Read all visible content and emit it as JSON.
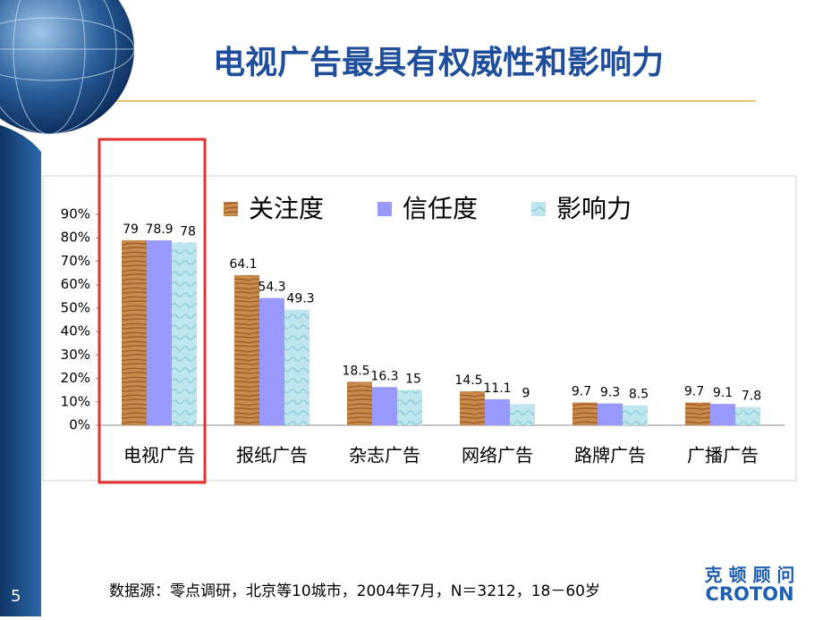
{
  "chart_data": {
    "type": "bar",
    "title": "电视广告最具有权威性和影响力",
    "categories": [
      "电视广告",
      "报纸广告",
      "杂志广告",
      "网络广告",
      "路牌广告",
      "广播广告"
    ],
    "series": [
      {
        "name": "关注度",
        "color": "#c98a4c",
        "values": [
          79,
          64.1,
          18.5,
          14.5,
          9.7,
          9.7
        ]
      },
      {
        "name": "信任度",
        "color": "#9999ff",
        "values": [
          78.9,
          54.3,
          16.3,
          11.1,
          9.3,
          9.1
        ]
      },
      {
        "name": "影响力",
        "color": "#bfe6ee",
        "values": [
          78,
          49.3,
          15,
          9,
          8.5,
          7.8
        ]
      }
    ],
    "ylim": [
      0,
      90
    ],
    "yticks": [
      {
        "value": 0,
        "label": "0%"
      },
      {
        "value": 10,
        "label": "10%"
      },
      {
        "value": 20,
        "label": "20%"
      },
      {
        "value": 30,
        "label": "30%"
      },
      {
        "value": 40,
        "label": "40%"
      },
      {
        "value": 50,
        "label": "50%"
      },
      {
        "value": 60,
        "label": "60%"
      },
      {
        "value": 70,
        "label": "70%"
      },
      {
        "value": 80,
        "label": "80%"
      },
      {
        "value": 90,
        "label": "90%"
      }
    ],
    "source": "数据源：零点调研，北京等10城市，2004年7月，N＝3212，18－60岁"
  },
  "page_number": "5",
  "logo": {
    "chinese": "克 顿 顾 问",
    "english": "CROTON"
  }
}
